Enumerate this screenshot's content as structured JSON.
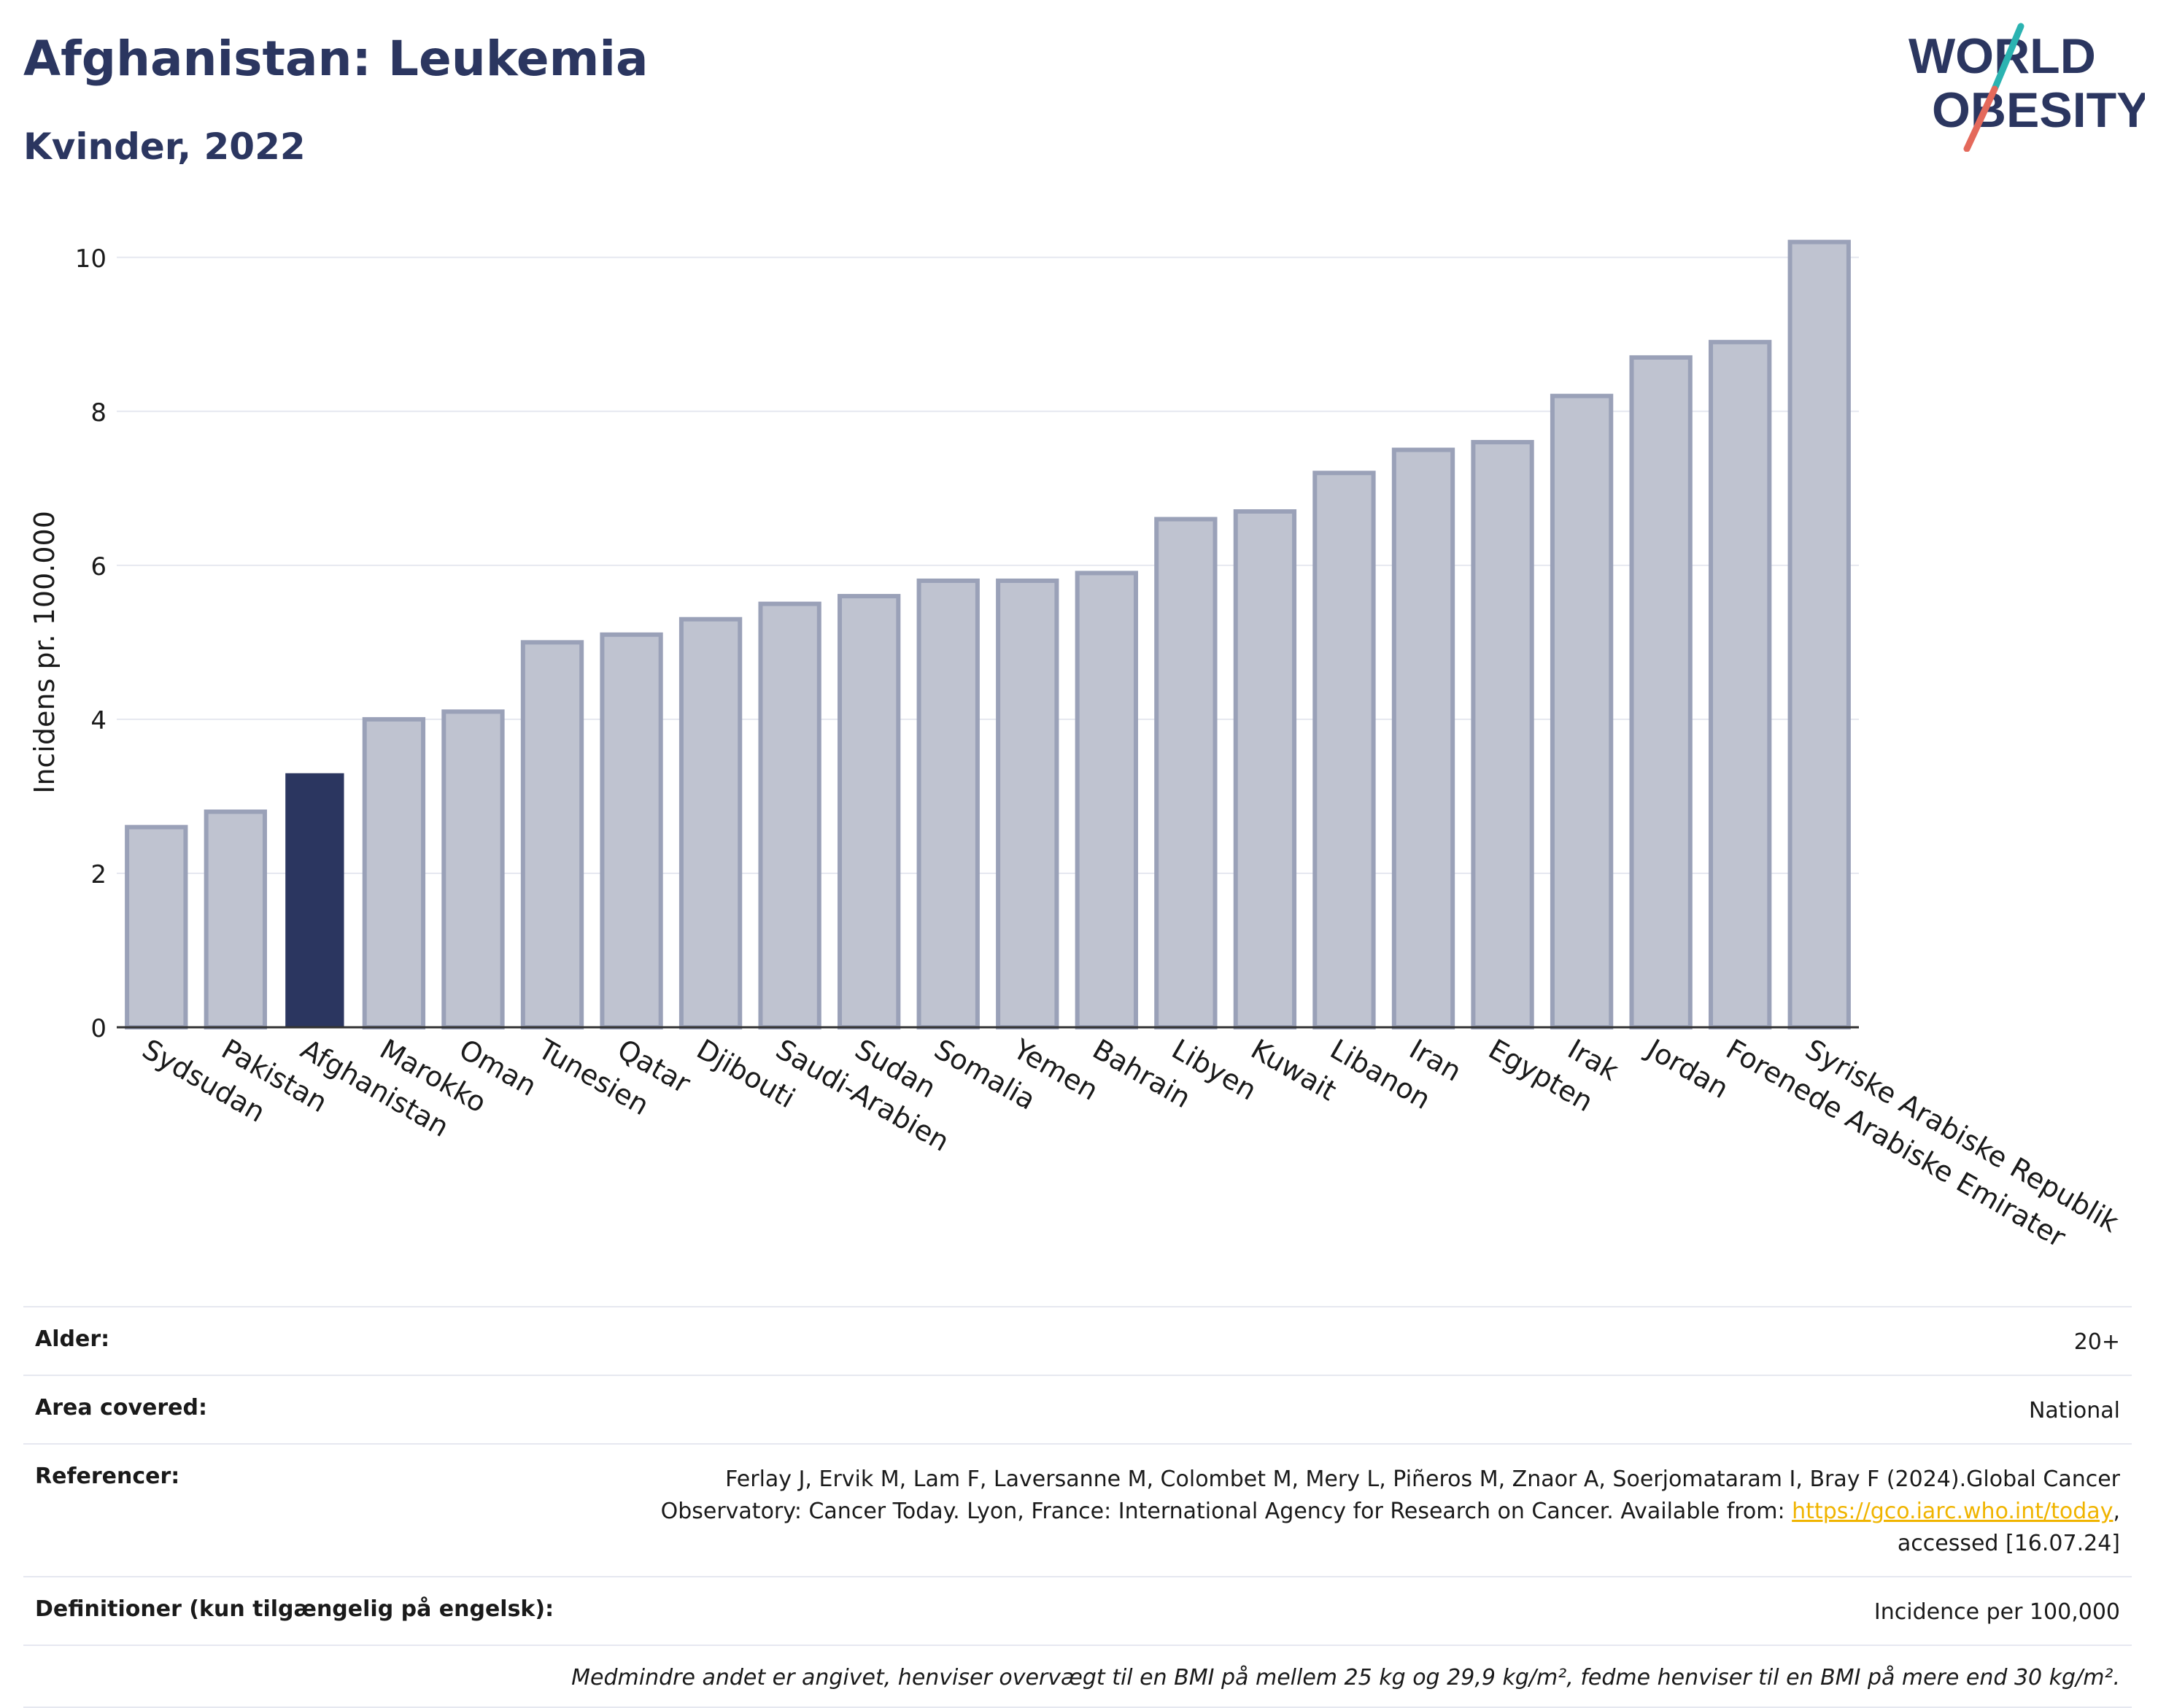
{
  "header": {
    "title": "Afghanistan: Leukemia",
    "subtitle": "Kvinder, 2022"
  },
  "logo": {
    "line1": "WORLD",
    "line2": "OBESITY",
    "accent_teal": "#2bb3b1",
    "accent_red": "#e4695b",
    "text_color": "#2b3660"
  },
  "chart_data": {
    "type": "bar",
    "ylabel": "Incidens pr. 100.000",
    "ylim": [
      0,
      10.5
    ],
    "yticks": [
      0,
      2,
      4,
      6,
      8,
      10
    ],
    "grid": true,
    "highlight": "Afghanistan",
    "colors": {
      "bar": "#bfc3d0",
      "bar_edge": "#9aa1b8",
      "highlight": "#2b3660"
    },
    "categories": [
      "Sydsudan",
      "Pakistan",
      "Afghanistan",
      "Marokko",
      "Oman",
      "Tunesien",
      "Qatar",
      "Djibouti",
      "Saudi-Arabien",
      "Sudan",
      "Somalia",
      "Yemen",
      "Bahrain",
      "Libyen",
      "Kuwait",
      "Libanon",
      "Iran",
      "Egypten",
      "Irak",
      "Jordan",
      "Forenede Arabiske Emirater",
      "Syriske Arabiske Republik"
    ],
    "values": [
      2.6,
      2.8,
      3.3,
      4.0,
      4.1,
      5.0,
      5.1,
      5.3,
      5.5,
      5.6,
      5.8,
      5.8,
      5.9,
      6.6,
      6.7,
      7.2,
      7.5,
      7.6,
      8.2,
      8.7,
      8.9,
      10.2
    ]
  },
  "info": {
    "age_label": "Alder:",
    "age_value": "20+",
    "area_label": "Area covered:",
    "area_value": "National",
    "ref_label": "Referencer:",
    "ref_text": "Ferlay J, Ervik M, Lam F, Laversanne M, Colombet M, Mery L, Piñeros M, Znaor A, Soerjomataram I, Bray F (2024).Global Cancer Observatory: Cancer Today. Lyon, France: International Agency for Research on Cancer. Available from: ",
    "ref_link": "https://gco.iarc.who.int/today",
    "ref_suffix": ", accessed [16.07.24]",
    "def_label": "Definitioner (kun tilgængelig på engelsk):",
    "def_value": "Incidence per 100,000",
    "note": "Medmindre andet er angivet, henviser overvægt til en BMI på mellem 25 kg og 29,9 kg/m², fedme henviser til en BMI på mere end 30 kg/m²."
  }
}
